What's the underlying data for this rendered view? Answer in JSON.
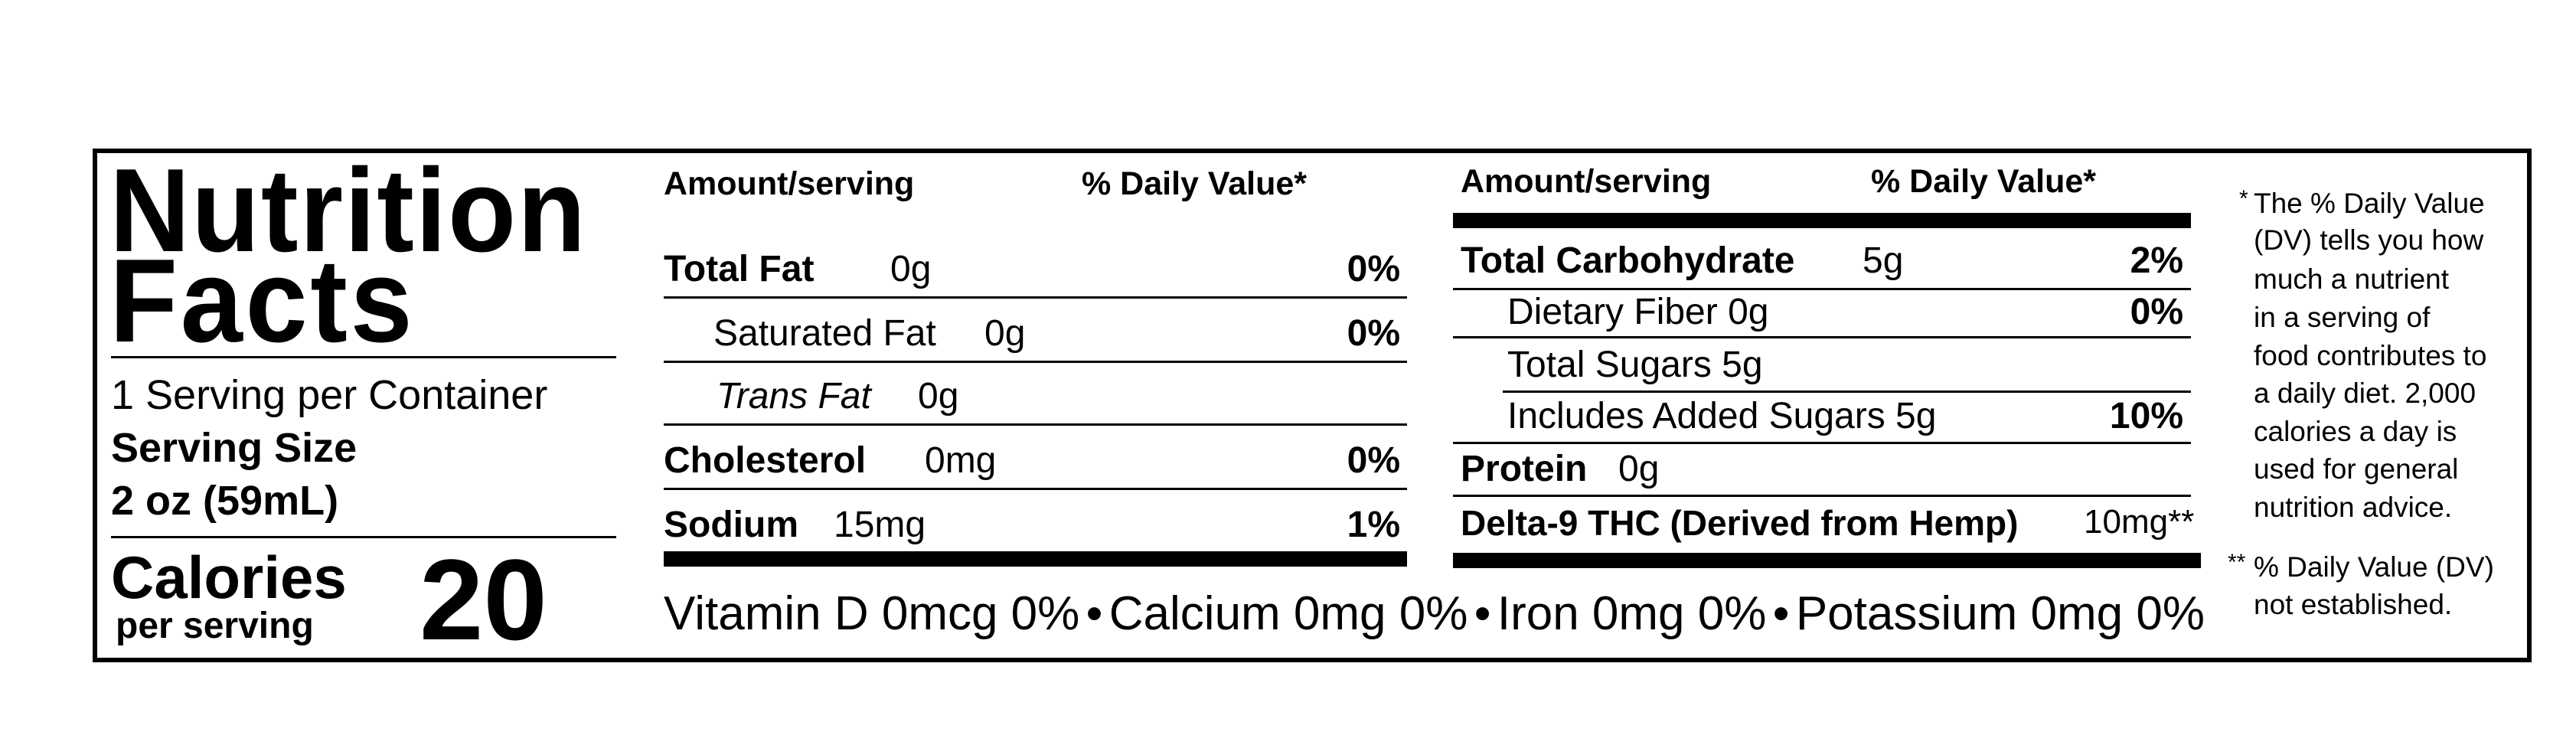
{
  "label": {
    "title_line1": "Nutrition",
    "title_line2": "Facts",
    "servings_per_container": "1 Serving per Container",
    "serving_size_label": "Serving Size",
    "serving_size_value": "2 oz (59mL)",
    "calories_label": "Calories",
    "calories_sub": "per serving",
    "calories_value": "20"
  },
  "left_table": {
    "header_amount": "Amount/serving",
    "header_dv": "% Daily Value*",
    "rows": [
      {
        "name": "Total Fat",
        "amount": "0g",
        "dv": "0%"
      },
      {
        "name": "Saturated Fat",
        "amount": "0g",
        "dv": "0%"
      },
      {
        "name": "Trans Fat",
        "amount": "0g",
        "dv": ""
      },
      {
        "name": "Cholesterol",
        "amount": "0mg",
        "dv": "0%"
      },
      {
        "name": "Sodium",
        "amount": "15mg",
        "dv": "1%"
      }
    ]
  },
  "right_table": {
    "header_amount": "Amount/serving",
    "header_dv": "% Daily Value*",
    "rows": [
      {
        "name": "Total Carbohydrate",
        "amount": "5g",
        "dv": "2%"
      },
      {
        "name": "Dietary Fiber 0g",
        "dv": "0%"
      },
      {
        "name": "Total Sugars 5g"
      },
      {
        "name": "Includes Added Sugars 5g",
        "dv": "10%"
      },
      {
        "name": "Protein",
        "amount": "0g"
      },
      {
        "name": "Delta-9 THC (Derived from Hemp)",
        "amount": "10mg**"
      }
    ]
  },
  "vitamins": [
    "Vitamin D 0mcg 0%",
    "•",
    "Calcium 0mg 0%",
    "•",
    "Iron 0mg 0%",
    "•",
    "Potassium 0mg 0%"
  ],
  "footnotes": {
    "star": "*",
    "dv_lines": [
      "The % Daily Value",
      "(DV) tells you how",
      "much a nutrient",
      "in a serving of",
      "food contributes to",
      "a daily diet. 2,000",
      "calories a day is",
      "used for general",
      "nutrition advice."
    ],
    "double_star": "**",
    "not_established_lines": [
      "% Daily Value (DV)",
      "not established."
    ]
  }
}
